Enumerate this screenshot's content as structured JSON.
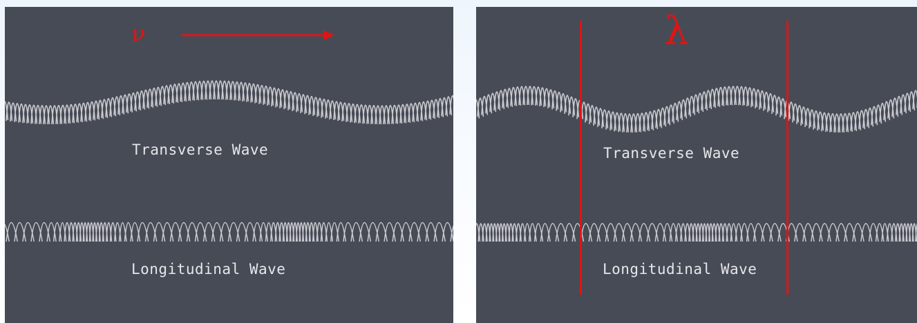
{
  "left_panel": {
    "velocity_symbol": "ν",
    "transverse_label": "Transverse Wave",
    "longitudinal_label": "Longitudinal Wave"
  },
  "right_panel": {
    "wavelength_symbol": "λ",
    "transverse_label": "Transverse Wave",
    "longitudinal_label": "Longitudinal Wave"
  },
  "colors": {
    "panel_background": "#474b56",
    "annotation_red": "#e11414",
    "spring_color": "#d9dade",
    "label_color": "#e6e7ea"
  }
}
